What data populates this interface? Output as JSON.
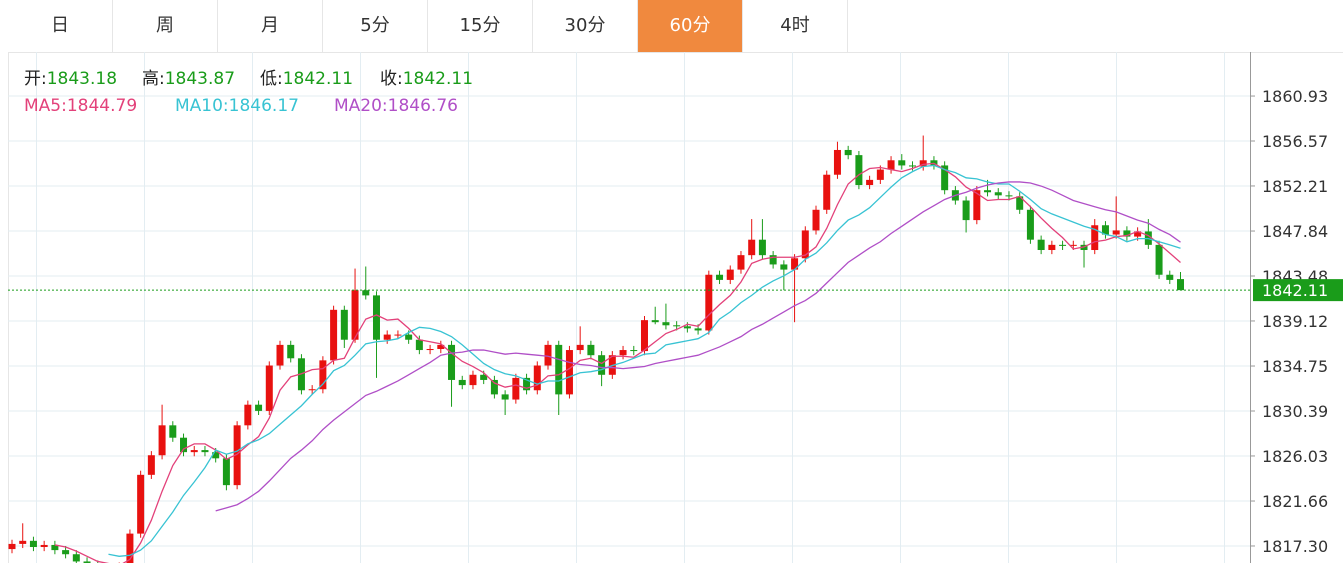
{
  "tabs": {
    "items": [
      "日",
      "周",
      "月",
      "5分",
      "15分",
      "30分",
      "60分",
      "4时"
    ],
    "active": 6
  },
  "chart_data": {
    "type": "candlestick",
    "ohlc_labels": [
      "开:",
      "高:",
      "低:",
      "收:"
    ],
    "ohlc_values": [
      1843.18,
      1843.87,
      1842.11,
      1842.11
    ],
    "up_color": "#e8110f",
    "down_color": "#1a9c1a",
    "open": [
      1817.0,
      1817.5,
      1817.8,
      1817.2,
      1817.4,
      1816.9,
      1816.5,
      1815.8,
      1815.5,
      1815.2,
      1815.0,
      1815.3,
      1818.5,
      1824.2,
      1826.1,
      1829.0,
      1827.8,
      1826.4,
      1826.6,
      1826.4,
      1825.8,
      1823.2,
      1829.0,
      1831.0,
      1830.4,
      1834.8,
      1836.8,
      1835.5,
      1832.4,
      1832.5,
      1835.3,
      1840.2,
      1837.3,
      1842.1,
      1841.6,
      1837.3,
      1837.8,
      1837.8,
      1837.3,
      1836.3,
      1836.4,
      1836.8,
      1833.4,
      1832.9,
      1833.9,
      1833.4,
      1832.0,
      1831.5,
      1833.6,
      1832.4,
      1834.8,
      1836.8,
      1832.0,
      1836.3,
      1836.8,
      1835.8,
      1833.9,
      1835.8,
      1836.3,
      1836.2,
      1839.2,
      1839.0,
      1838.7,
      1838.6,
      1838.4,
      1838.2,
      1843.6,
      1843.1,
      1844.1,
      1845.5,
      1847.0,
      1845.5,
      1844.6,
      1844.1,
      1845.2,
      1847.9,
      1849.9,
      1853.3,
      1855.7,
      1855.2,
      1852.3,
      1852.8,
      1853.8,
      1854.7,
      1854.2,
      1854.1,
      1854.7,
      1854.2,
      1851.8,
      1850.8,
      1848.9,
      1851.8,
      1851.6,
      1851.3,
      1851.2,
      1849.9,
      1847.0,
      1846.0,
      1846.5,
      1846.4,
      1846.5,
      1846.0,
      1848.4,
      1847.5,
      1847.9,
      1847.3,
      1847.8,
      1846.5,
      1843.6,
      1843.18
    ],
    "high": [
      1817.9,
      1819.5,
      1818.2,
      1817.8,
      1817.8,
      1817.3,
      1816.9,
      1816.2,
      1815.9,
      1815.6,
      1815.7,
      1818.9,
      1824.6,
      1826.5,
      1831.0,
      1829.4,
      1828.2,
      1827.0,
      1827.0,
      1826.8,
      1826.2,
      1829.4,
      1831.4,
      1831.4,
      1835.2,
      1837.2,
      1837.2,
      1835.9,
      1832.9,
      1835.7,
      1840.6,
      1840.6,
      1844.2,
      1844.4,
      1842.0,
      1838.2,
      1838.2,
      1838.2,
      1837.7,
      1836.8,
      1837.2,
      1837.2,
      1833.8,
      1834.3,
      1834.3,
      1833.8,
      1832.4,
      1834.0,
      1834.0,
      1835.2,
      1837.2,
      1837.2,
      1836.7,
      1838.6,
      1837.2,
      1836.2,
      1836.2,
      1836.7,
      1836.7,
      1839.6,
      1840.5,
      1840.8,
      1839.1,
      1839.0,
      1838.8,
      1844.0,
      1844.0,
      1844.5,
      1845.9,
      1849.0,
      1849.0,
      1845.9,
      1845.0,
      1845.6,
      1848.3,
      1850.3,
      1853.7,
      1856.5,
      1856.1,
      1855.6,
      1853.2,
      1854.2,
      1855.1,
      1855.3,
      1854.6,
      1857.1,
      1855.1,
      1854.6,
      1852.2,
      1851.2,
      1852.2,
      1852.8,
      1852.0,
      1851.7,
      1851.6,
      1850.3,
      1847.4,
      1846.9,
      1846.9,
      1846.9,
      1846.9,
      1849.0,
      1848.8,
      1851.2,
      1848.3,
      1848.2,
      1849.0,
      1846.9,
      1844.0,
      1843.87
    ],
    "low": [
      1816.6,
      1817.1,
      1816.8,
      1816.8,
      1816.5,
      1816.1,
      1815.4,
      1815.1,
      1814.8,
      1814.6,
      1814.6,
      1814.9,
      1818.1,
      1823.8,
      1825.7,
      1827.4,
      1826.0,
      1826.0,
      1826.0,
      1825.4,
      1822.7,
      1822.8,
      1828.6,
      1830.0,
      1830.0,
      1834.4,
      1835.1,
      1832.0,
      1832.0,
      1832.1,
      1834.9,
      1836.5,
      1837.0,
      1841.2,
      1833.6,
      1836.9,
      1837.4,
      1836.9,
      1835.9,
      1835.9,
      1836.0,
      1830.8,
      1832.5,
      1832.5,
      1833.0,
      1831.6,
      1830.0,
      1831.1,
      1832.0,
      1832.0,
      1834.4,
      1830.0,
      1831.6,
      1835.9,
      1835.4,
      1832.8,
      1833.5,
      1835.4,
      1835.8,
      1835.8,
      1838.8,
      1838.3,
      1838.2,
      1838.0,
      1837.8,
      1837.8,
      1842.7,
      1842.7,
      1843.7,
      1845.1,
      1845.1,
      1844.2,
      1842.1,
      1839.0,
      1844.8,
      1847.5,
      1849.5,
      1852.9,
      1854.8,
      1851.9,
      1851.9,
      1852.4,
      1853.4,
      1853.8,
      1853.7,
      1853.7,
      1853.8,
      1851.4,
      1850.4,
      1847.7,
      1848.5,
      1851.2,
      1850.9,
      1850.8,
      1849.5,
      1846.6,
      1845.6,
      1845.6,
      1846.0,
      1846.0,
      1844.3,
      1845.6,
      1847.1,
      1847.1,
      1846.9,
      1846.9,
      1846.1,
      1843.2,
      1842.7,
      1842.11
    ],
    "close": [
      1817.5,
      1817.8,
      1817.2,
      1817.4,
      1816.9,
      1816.5,
      1815.8,
      1815.5,
      1815.2,
      1815.0,
      1815.3,
      1818.5,
      1824.2,
      1826.1,
      1829.0,
      1827.8,
      1826.4,
      1826.6,
      1826.4,
      1825.8,
      1823.2,
      1829.0,
      1831.0,
      1830.4,
      1834.8,
      1836.8,
      1835.5,
      1832.4,
      1832.5,
      1835.3,
      1840.2,
      1837.3,
      1842.1,
      1841.6,
      1837.3,
      1837.8,
      1837.8,
      1837.3,
      1836.3,
      1836.4,
      1836.8,
      1833.4,
      1832.9,
      1833.9,
      1833.4,
      1832.0,
      1831.5,
      1833.6,
      1832.4,
      1834.8,
      1836.8,
      1832.0,
      1836.3,
      1836.8,
      1835.8,
      1833.9,
      1835.8,
      1836.3,
      1836.2,
      1839.2,
      1839.0,
      1838.7,
      1838.6,
      1838.4,
      1838.2,
      1843.6,
      1843.1,
      1844.1,
      1845.5,
      1847.0,
      1845.5,
      1844.6,
      1844.1,
      1845.2,
      1847.9,
      1849.9,
      1853.3,
      1855.7,
      1855.2,
      1852.3,
      1852.8,
      1853.8,
      1854.7,
      1854.2,
      1854.1,
      1854.7,
      1854.2,
      1851.8,
      1850.8,
      1848.9,
      1851.8,
      1851.6,
      1851.3,
      1851.2,
      1849.9,
      1847.0,
      1846.0,
      1846.5,
      1846.4,
      1846.5,
      1846.0,
      1848.4,
      1847.5,
      1847.9,
      1847.3,
      1847.8,
      1846.5,
      1843.6,
      1843.1,
      1842.11
    ],
    "series": [
      {
        "name": "MA5:",
        "color": "#e3417a",
        "current": 1844.79,
        "values": [
          null,
          null,
          null,
          null,
          1817.4,
          1817.2,
          1816.8,
          1816.3,
          1815.8,
          1815.6,
          1815.4,
          1816.0,
          1817.6,
          1819.8,
          1822.6,
          1825.1,
          1826.7,
          1827.2,
          1827.2,
          1826.6,
          1825.7,
          1826.2,
          1827.1,
          1827.9,
          1829.7,
          1832.4,
          1833.7,
          1834.0,
          1834.4,
          1834.5,
          1835.3,
          1835.5,
          1837.5,
          1839.3,
          1839.7,
          1839.2,
          1839.3,
          1838.4,
          1837.3,
          1837.1,
          1836.9,
          1836.0,
          1835.2,
          1834.7,
          1834.1,
          1833.1,
          1832.7,
          1832.9,
          1832.6,
          1832.9,
          1833.8,
          1833.9,
          1834.5,
          1835.3,
          1835.5,
          1835.0,
          1835.7,
          1835.7,
          1835.6,
          1836.3,
          1837.1,
          1837.9,
          1838.3,
          1838.8,
          1838.6,
          1839.7,
          1840.7,
          1841.6,
          1842.9,
          1844.7,
          1845.1,
          1845.3,
          1845.3,
          1845.3,
          1845.5,
          1846.3,
          1848.1,
          1850.4,
          1852.4,
          1853.3,
          1853.9,
          1854.0,
          1853.8,
          1853.6,
          1853.9,
          1854.3,
          1854.4,
          1853.8,
          1853.1,
          1852.1,
          1851.5,
          1850.8,
          1850.9,
          1850.9,
          1851.2,
          1850.2,
          1849.1,
          1848.1,
          1847.2,
          1846.1,
          1846.3,
          1846.8,
          1846.96,
          1847.3,
          1847.4,
          1847.8,
          1847.4,
          1846.6,
          1845.7,
          1844.79
        ]
      },
      {
        "name": "MA10:",
        "color": "#38c3d3",
        "current": 1846.17,
        "values": [
          null,
          null,
          null,
          null,
          null,
          null,
          null,
          null,
          null,
          1816.5,
          1816.3,
          1816.4,
          1816.9,
          1817.8,
          1819.2,
          1820.6,
          1822.2,
          1823.5,
          1824.9,
          1826.6,
          1826.2,
          1826.5,
          1827.2,
          1827.6,
          1828.2,
          1829.1,
          1830.0,
          1830.9,
          1832.0,
          1833.0,
          1834.3,
          1834.8,
          1835.8,
          1836.9,
          1837.1,
          1837.2,
          1837.4,
          1838.0,
          1838.5,
          1838.4,
          1838.1,
          1837.6,
          1836.8,
          1835.9,
          1835.0,
          1834.4,
          1834.0,
          1833.8,
          1833.4,
          1833.0,
          1833.3,
          1833.3,
          1833.7,
          1834.1,
          1834.2,
          1834.4,
          1834.8,
          1835.1,
          1835.5,
          1835.9,
          1836.0,
          1836.8,
          1837.0,
          1837.2,
          1837.4,
          1838.0,
          1839.3,
          1840.0,
          1840.9,
          1841.6,
          1842.4,
          1843.0,
          1843.5,
          1844.1,
          1845.1,
          1845.7,
          1846.7,
          1847.9,
          1848.9,
          1849.4,
          1850.1,
          1851.1,
          1852.1,
          1853.0,
          1853.6,
          1854.1,
          1854.2,
          1853.8,
          1853.5,
          1853.0,
          1852.9,
          1852.6,
          1852.4,
          1852.4,
          1851.7,
          1850.9,
          1850.0,
          1849.5,
          1849.1,
          1848.7,
          1848.3,
          1848.0,
          1847.5,
          1847.3,
          1846.8,
          1847.1,
          1847.1,
          1846.8,
          1846.5,
          1846.17
        ]
      },
      {
        "name": "MA20:",
        "color": "#b04fc7",
        "current": 1846.76,
        "values": [
          null,
          null,
          null,
          null,
          null,
          null,
          null,
          null,
          null,
          null,
          null,
          null,
          null,
          null,
          null,
          null,
          null,
          null,
          null,
          1820.7,
          1821.0,
          1821.3,
          1821.9,
          1822.6,
          1823.6,
          1824.7,
          1825.8,
          1826.6,
          1827.5,
          1828.6,
          1829.5,
          1830.3,
          1831.1,
          1831.9,
          1832.3,
          1832.8,
          1833.3,
          1833.9,
          1834.5,
          1835.1,
          1835.8,
          1836.0,
          1836.1,
          1836.3,
          1836.3,
          1836.1,
          1835.9,
          1836.0,
          1835.9,
          1835.8,
          1835.7,
          1835.4,
          1835.1,
          1834.9,
          1834.8,
          1834.6,
          1834.6,
          1834.5,
          1834.6,
          1834.7,
          1835.0,
          1835.2,
          1835.4,
          1835.6,
          1835.8,
          1836.2,
          1836.6,
          1837.1,
          1837.6,
          1838.3,
          1838.8,
          1839.4,
          1840.0,
          1840.6,
          1841.1,
          1841.8,
          1842.8,
          1843.8,
          1844.8,
          1845.5,
          1846.2,
          1846.8,
          1847.6,
          1848.3,
          1849.0,
          1849.7,
          1850.3,
          1850.9,
          1851.3,
          1851.6,
          1852.0,
          1852.3,
          1852.5,
          1852.6,
          1852.6,
          1852.5,
          1852.2,
          1851.8,
          1851.3,
          1850.8,
          1850.5,
          1850.2,
          1849.9,
          1849.7,
          1849.3,
          1848.9,
          1848.6,
          1848.0,
          1847.5,
          1846.76
        ]
      }
    ],
    "last_price": 1842.11,
    "ylim": [
      1815.65,
      1865.2
    ],
    "yticks": [
      1860.93,
      1856.57,
      1852.21,
      1847.84,
      1843.48,
      1839.12,
      1834.75,
      1830.39,
      1826.03,
      1821.66,
      {
        "value": 1817.3,
        "label": "1817.30"
      }
    ],
    "grid": true
  }
}
